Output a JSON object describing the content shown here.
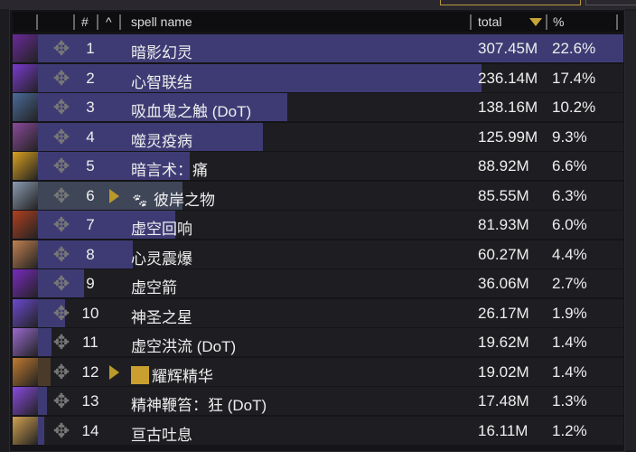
{
  "header": {
    "col_num": "#",
    "col_expand": "^",
    "col_name": "spell name",
    "col_total": "total",
    "col_pct": "%"
  },
  "colors": {
    "bar": "#3e3b74",
    "pet_bar": "#3f4658",
    "pet_bar_orange": "#4a3a2a",
    "sort_arrow": "#c8a536"
  },
  "rows": [
    {
      "rank": "1",
      "name": "暗影幻灵",
      "total": "307.45M",
      "pct": "22.6%",
      "value": 307.45,
      "icon": "#6a2a9a"
    },
    {
      "rank": "2",
      "name": "心智联结",
      "total": "236.14M",
      "pct": "17.4%",
      "value": 236.14,
      "icon": "#7a3ad0"
    },
    {
      "rank": "3",
      "name": "吸血鬼之触 (DoT)",
      "total": "138.16M",
      "pct": "10.2%",
      "value": 138.16,
      "icon": "#4a6a9a"
    },
    {
      "rank": "4",
      "name": "噬灵疫病",
      "total": "125.99M",
      "pct": "9.3%",
      "value": 125.99,
      "icon": "#8a4a9a"
    },
    {
      "rank": "5",
      "name": "暗言术：痛",
      "total": "88.92M",
      "pct": "6.6%",
      "value": 88.92,
      "icon": "#d8a020"
    },
    {
      "rank": "6",
      "name": "彼岸之物",
      "total": "85.55M",
      "pct": "6.3%",
      "value": 85.55,
      "icon": "#8a9ab0",
      "pet": true,
      "pet_icon": "paw-icon"
    },
    {
      "rank": "7",
      "name": "虚空回响",
      "total": "81.93M",
      "pct": "6.0%",
      "value": 81.93,
      "icon": "#b04020"
    },
    {
      "rank": "8",
      "name": "心灵震爆",
      "total": "60.27M",
      "pct": "4.4%",
      "value": 60.27,
      "icon": "#c08050"
    },
    {
      "rank": "9",
      "name": "虚空箭",
      "total": "36.06M",
      "pct": "2.7%",
      "value": 36.06,
      "icon": "#7a2ac0"
    },
    {
      "rank": "10",
      "name": "神圣之星",
      "total": "26.17M",
      "pct": "1.9%",
      "value": 26.17,
      "icon": "#6a4ad0"
    },
    {
      "rank": "11",
      "name": "虚空洪流 (DoT)",
      "total": "19.62M",
      "pct": "1.4%",
      "value": 19.62,
      "icon": "#9a6ad0"
    },
    {
      "rank": "12",
      "name": "耀辉精华",
      "total": "19.02M",
      "pct": "1.4%",
      "value": 19.02,
      "icon": "#c07a30",
      "pet": true,
      "pet_icon": "pet-portrait-icon"
    },
    {
      "rank": "13",
      "name": "精神鞭笞：狂 (DoT)",
      "total": "17.48M",
      "pct": "1.3%",
      "value": 17.48,
      "icon": "#8a4ae0"
    },
    {
      "rank": "14",
      "name": "亘古吐息",
      "total": "16.11M",
      "pct": "1.2%",
      "value": 16.11,
      "icon": "#d0a050"
    }
  ]
}
